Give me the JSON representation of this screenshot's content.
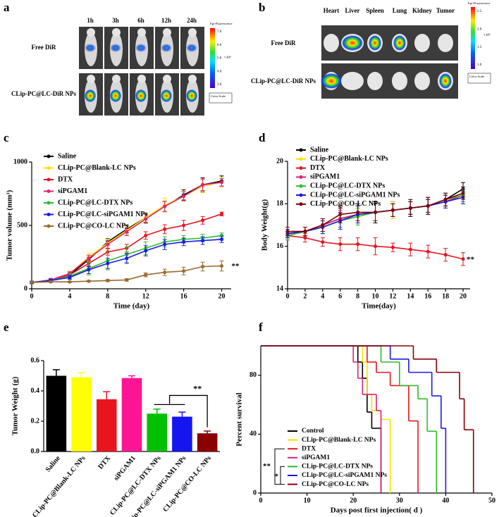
{
  "panel_labels": [
    "a",
    "b",
    "c",
    "d",
    "e",
    "f"
  ],
  "imaging": [
    {
      "columns": [
        "1h",
        "3h",
        "6h",
        "12h",
        "24h"
      ],
      "rows": [
        "Free DiR",
        "CLip-PC@LC-DiR NPs"
      ],
      "colorbar_title": "Epi-Fluorescence",
      "colorbar_unit": "×10⁹",
      "colorbar_labels": [
        "7.0",
        "6.0",
        "5.0",
        "4.0",
        "3.0"
      ],
      "scale_note": "Color Scale"
    },
    {
      "columns": [
        "Heart",
        "Liver",
        "Spleen",
        "Lung",
        "Kidney",
        "Tumor"
      ],
      "rows": [
        "Free DiR",
        "CLip-PC@LC-DiR NPs"
      ],
      "colorbar_title": "Epi-Fluorescence",
      "colorbar_unit": "×10⁹",
      "colorbar_labels": [
        "2.5",
        "2.0",
        "1.5",
        "1.0"
      ],
      "scale_note": "Color Scale"
    }
  ],
  "chart_data": [
    {
      "type": "line",
      "x": [
        0,
        2,
        4,
        6,
        8,
        10,
        12,
        14,
        16,
        18,
        20
      ],
      "xlim": [
        0,
        21
      ],
      "xticks": [
        0,
        4,
        8,
        12,
        16,
        20
      ],
      "ylim": [
        0,
        1000
      ],
      "yticks": [
        0,
        500,
        1000
      ],
      "xlabel": "Time (day)",
      "ylabel": "Tumor volume (mm³)",
      "annotations": [
        "**"
      ],
      "series": [
        {
          "name": "Saline",
          "color": "#000000",
          "values": [
            50,
            70,
            110,
            230,
            370,
            470,
            560,
            650,
            740,
            820,
            850
          ],
          "errors": [
            10,
            12,
            15,
            20,
            25,
            30,
            35,
            40,
            40,
            55,
            40
          ]
        },
        {
          "name": "CLip-PC@Blank-LC NPs",
          "color": "#f5e400",
          "values": [
            50,
            70,
            120,
            250,
            360,
            460,
            560,
            660,
            730,
            810,
            840
          ],
          "errors": [
            10,
            12,
            20,
            30,
            30,
            35,
            40,
            55,
            40,
            50,
            40
          ]
        },
        {
          "name": "DTX",
          "color": "#e8141e",
          "values": [
            50,
            65,
            110,
            200,
            290,
            320,
            420,
            470,
            500,
            540,
            590
          ],
          "errors": [
            10,
            10,
            15,
            25,
            25,
            30,
            30,
            35,
            40,
            30,
            15
          ]
        },
        {
          "name": "siPGAM1",
          "color": "#e0217b",
          "values": [
            50,
            70,
            120,
            240,
            350,
            450,
            550,
            650,
            730,
            820,
            840
          ],
          "errors": [
            10,
            12,
            15,
            25,
            30,
            30,
            35,
            40,
            35,
            45,
            30
          ]
        },
        {
          "name": "CLip-PC@LC-DTX NPs",
          "color": "#2bbd2b",
          "values": [
            50,
            65,
            100,
            160,
            220,
            270,
            320,
            370,
            390,
            400,
            420
          ],
          "errors": [
            10,
            10,
            20,
            50,
            70,
            60,
            50,
            40,
            30,
            30,
            20
          ]
        },
        {
          "name": "CLip-PC@LC-siPGAM1 NPs",
          "color": "#1a1ae6",
          "values": [
            50,
            65,
            90,
            150,
            200,
            240,
            300,
            350,
            370,
            380,
            390
          ],
          "errors": [
            10,
            10,
            15,
            30,
            40,
            40,
            40,
            40,
            30,
            30,
            25
          ]
        },
        {
          "name": "CLip-PC@CO-LC NPs",
          "color": "#9a6a2e",
          "values": [
            50,
            55,
            55,
            60,
            65,
            70,
            110,
            130,
            140,
            175,
            180
          ],
          "errors": [
            5,
            5,
            5,
            5,
            8,
            10,
            15,
            25,
            30,
            35,
            40
          ]
        }
      ]
    },
    {
      "type": "line",
      "x": [
        0,
        2,
        4,
        6,
        8,
        10,
        12,
        14,
        16,
        18,
        20
      ],
      "xlim": [
        0,
        20.8
      ],
      "xticks": [
        0,
        2,
        4,
        6,
        8,
        10,
        12,
        14,
        16,
        18,
        20
      ],
      "ylim": [
        14,
        20
      ],
      "yticks": [
        14,
        16,
        18,
        20
      ],
      "xlabel": "Time(day)",
      "ylabel": "Body Weight(g)",
      "annotations": [
        "**"
      ],
      "series": [
        {
          "name": "Saline",
          "color": "#000000",
          "values": [
            16.6,
            16.7,
            17.0,
            17.3,
            17.5,
            17.6,
            17.7,
            17.8,
            17.9,
            18.2,
            18.7
          ],
          "errors": [
            0.2,
            0.2,
            0.3,
            0.5,
            0.4,
            0.5,
            0.4,
            0.4,
            0.4,
            0.3,
            0.3
          ]
        },
        {
          "name": "CLip-PC@Blank-LC NPs",
          "color": "#f5e400",
          "values": [
            16.5,
            16.7,
            16.9,
            17.2,
            17.4,
            17.6,
            17.7,
            17.8,
            17.9,
            18.1,
            18.3
          ],
          "errors": [
            0.2,
            0.2,
            0.3,
            0.4,
            0.4,
            0.4,
            0.4,
            0.3,
            0.3,
            0.3,
            0.3
          ]
        },
        {
          "name": "DTX",
          "color": "#e8141e",
          "values": [
            16.5,
            16.4,
            16.2,
            16.1,
            16.1,
            16.0,
            15.95,
            15.85,
            15.75,
            15.6,
            15.4
          ],
          "errors": [
            0.2,
            0.2,
            0.2,
            0.3,
            0.3,
            0.4,
            0.2,
            0.3,
            0.3,
            0.3,
            0.3
          ]
        },
        {
          "name": "siPGAM1",
          "color": "#e0217b",
          "values": [
            16.6,
            16.7,
            17.0,
            17.3,
            17.5,
            17.6,
            17.7,
            17.8,
            17.9,
            18.1,
            18.4
          ],
          "errors": [
            0.2,
            0.2,
            0.3,
            0.4,
            0.4,
            0.4,
            0.3,
            0.3,
            0.3,
            0.3,
            0.3
          ]
        },
        {
          "name": "CLip-PC@LC-DTX NPs",
          "color": "#2bbd2b",
          "values": [
            16.5,
            16.7,
            16.9,
            17.2,
            17.4,
            17.6,
            17.7,
            17.8,
            17.9,
            18.2,
            18.4
          ],
          "errors": [
            0.2,
            0.2,
            0.3,
            0.4,
            0.4,
            0.4,
            0.3,
            0.3,
            0.3,
            0.3,
            0.3
          ]
        },
        {
          "name": "CLip-PC@LC-siPGAM1 NPs",
          "color": "#1a1ae6",
          "values": [
            16.6,
            16.7,
            16.9,
            17.2,
            17.5,
            17.6,
            17.7,
            17.8,
            17.9,
            18.1,
            18.3
          ],
          "errors": [
            0.2,
            0.2,
            0.3,
            0.4,
            0.4,
            0.4,
            0.3,
            0.3,
            0.3,
            0.3,
            0.3
          ]
        },
        {
          "name": "CLip-PC@CO-LC NPs",
          "color": "#800000",
          "values": [
            16.7,
            16.7,
            17.0,
            17.5,
            17.6,
            17.6,
            17.7,
            17.8,
            17.9,
            18.2,
            18.5
          ],
          "errors": [
            0.2,
            0.2,
            0.3,
            0.4,
            0.4,
            0.4,
            0.3,
            0.3,
            0.4,
            0.3,
            0.3
          ]
        }
      ]
    },
    {
      "type": "bar",
      "categories": [
        "Saline",
        "CLip-PC@Blank-LC NPs",
        "DTX",
        "siPGAM1",
        "CLip-PC@LC-DTX NPs",
        "CLip-PC@LC-siPGAM1 NPs",
        "CLip-PC@CO-LC NPs"
      ],
      "values": [
        0.5,
        0.49,
        0.345,
        0.485,
        0.25,
        0.23,
        0.12
      ],
      "errors": [
        0.04,
        0.03,
        0.05,
        0.015,
        0.03,
        0.03,
        0.015
      ],
      "colors": [
        "#000000",
        "#ffff00",
        "#e8141e",
        "#ff1493",
        "#00c000",
        "#1515f0",
        "#8b0000"
      ],
      "ylim": [
        0,
        0.6
      ],
      "yticks": [
        {
          "value": 0,
          "label": "0.0"
        },
        0.2,
        0.4,
        0.6
      ],
      "ylabel": "Tumor Weight (g)",
      "annotations": [
        "**"
      ]
    },
    {
      "type": "survival",
      "xlim": [
        0,
        50
      ],
      "xticks": [
        0,
        10,
        20,
        30,
        40,
        50
      ],
      "ylim": [
        0,
        100
      ],
      "yticks": [
        0,
        40,
        80
      ],
      "xlabel": "Days post first injection( d )",
      "ylabel": "Percent survival",
      "annotations": [
        "**",
        "*"
      ],
      "series": [
        {
          "name": "Control",
          "color": "#000000",
          "x": [
            0,
            21,
            22,
            23,
            24,
            26
          ],
          "values": [
            100,
            89,
            78,
            55,
            44,
            0
          ]
        },
        {
          "name": "CLip-PC@Blank-LC NPs",
          "color": "#f5e400",
          "x": [
            0,
            22,
            23,
            24,
            26,
            28
          ],
          "values": [
            100,
            89,
            67,
            56,
            50,
            0
          ]
        },
        {
          "name": "DTX",
          "color": "#e8141e",
          "x": [
            0,
            23,
            25,
            28,
            32,
            34
          ],
          "values": [
            100,
            89,
            82,
            73,
            49,
            0
          ]
        },
        {
          "name": "siPGAM1",
          "color": "#e0217b",
          "x": [
            0,
            20,
            21,
            22,
            25,
            26
          ],
          "values": [
            100,
            89,
            78,
            67,
            56,
            0
          ]
        },
        {
          "name": "CLip-PC@LC-DTX NPs",
          "color": "#2bbd2b",
          "x": [
            0,
            26,
            30,
            34,
            36,
            38
          ],
          "values": [
            100,
            89,
            73,
            64,
            42,
            0
          ]
        },
        {
          "name": "CLip-PC@LC-siPGAM1 NPs",
          "color": "#1a1ae6",
          "x": [
            0,
            28,
            32,
            37,
            39,
            40
          ],
          "values": [
            100,
            91,
            82,
            66,
            44,
            0
          ]
        },
        {
          "name": "CLip-PC@CO-LC NPs",
          "color": "#8b0000",
          "x": [
            0,
            33,
            38,
            43,
            44,
            46
          ],
          "values": [
            100,
            91,
            82,
            64,
            43,
            0
          ]
        }
      ]
    }
  ]
}
